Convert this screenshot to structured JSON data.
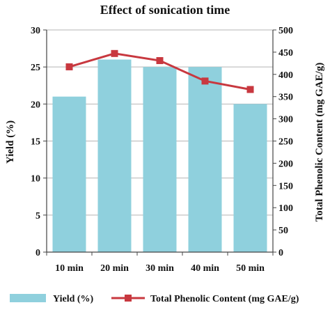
{
  "chart_data": {
    "type": "bar",
    "title": "Effect of sonication time",
    "categories": [
      "10 min",
      "20 min",
      "30 min",
      "40 min",
      "50 min"
    ],
    "ylabel": "Yield (%)",
    "y2label": "Total Phenolic Content (mg GAE/g)",
    "ylim": [
      0,
      30
    ],
    "y2lim": [
      0,
      500
    ],
    "yticks": [
      0,
      5,
      10,
      15,
      20,
      25,
      30
    ],
    "y2ticks": [
      0,
      50,
      100,
      150,
      200,
      250,
      300,
      350,
      400,
      450,
      500
    ],
    "grid": true,
    "legend_position": "bottom",
    "series": [
      {
        "name": "Yield (%)",
        "type": "bar",
        "axis": "left",
        "color": "#8fd0dd",
        "values": [
          21,
          26,
          25,
          25,
          20
        ]
      },
      {
        "name": "Total Phenolic Content (mg GAE/g)",
        "type": "line",
        "axis": "right",
        "color": "#c8383f",
        "marker": "square",
        "values": [
          417,
          447,
          431,
          385,
          366
        ]
      }
    ]
  }
}
